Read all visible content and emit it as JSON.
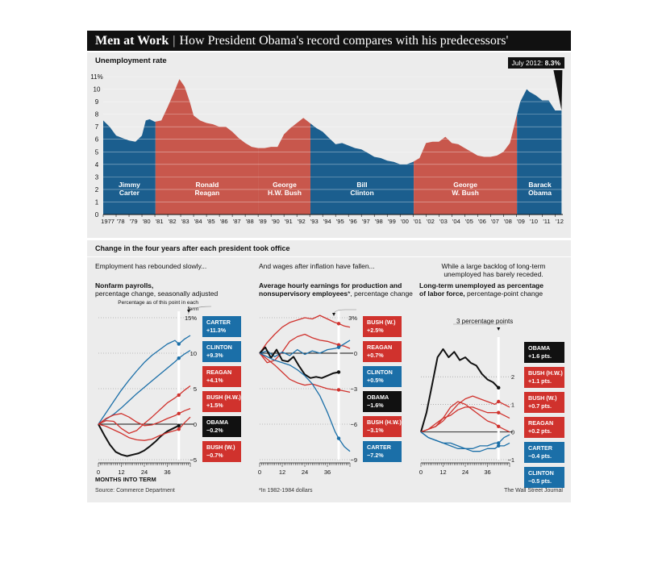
{
  "header": {
    "title_bold": "Men at Work",
    "separator": "|",
    "title_rest": "How President Obama's record compares with his predecessors'"
  },
  "top": {
    "subtitle": "Unemployment rate",
    "callout_prefix": "July 2012:",
    "callout_value": "8.3%",
    "colors": {
      "dem": "#1b5e8e",
      "rep": "#c8574c"
    }
  },
  "section": {
    "title": "Change in the four years after each president took office"
  },
  "panels": {
    "p1": {
      "intro": "Employment has rebounded slowly...",
      "title_bold": "Nonfarm payrolls,",
      "title_rest": "percentage change, seasonally adjusted",
      "note": "Percentage as of this point in each term"
    },
    "p2": {
      "intro": "And wages after inflation have fallen...",
      "title_bold_1": "Average hourly earnings for production and",
      "title_bold_2": "nonsupervisory employees",
      "title_mark": "*",
      "title_rest": ", percentage change"
    },
    "p3": {
      "intro_1": "While a large backlog of long-term",
      "intro_2": "unemployed has barely receded.",
      "title_bold_1": "Long-term unemployed as percentage",
      "title_bold_2": "of labor force,",
      "title_rest": " percentage-point change",
      "annotation": "3 percentage points"
    }
  },
  "footer": {
    "xlabel": "MONTHS INTO TERM",
    "source": "Source: Commerce Department",
    "note": "*In 1982-1984 dollars",
    "credit": "The Wall Street Journal"
  },
  "chart_data": [
    {
      "type": "area",
      "title": "Unemployment rate",
      "ylim": [
        0,
        11
      ],
      "y_ticks": [
        "0",
        "1",
        "2",
        "3",
        "4",
        "5",
        "6",
        "7",
        "8",
        "9",
        "10",
        "11%"
      ],
      "x_ticks": [
        "1977",
        "'78",
        "'79",
        "'80",
        "'81",
        "'82",
        "'83",
        "'84",
        "'85",
        "'86",
        "'87",
        "'88",
        "'89",
        "'90",
        "'91",
        "'92",
        "'93",
        "'94",
        "'95",
        "'96",
        "'97",
        "'98",
        "'99",
        "'00",
        "'01",
        "'02",
        "'03",
        "'04",
        "'05",
        "'06",
        "'07",
        "'08",
        "'09",
        "'10",
        "'11",
        "'12"
      ],
      "x_range": [
        1977,
        2012.6
      ],
      "series": [
        {
          "x": [
            1977.0,
            1977.5,
            1978.0,
            1978.5,
            1979.0,
            1979.5,
            1980.0,
            1980.3,
            1980.6,
            1981.0,
            1981.5,
            1982.0,
            1982.5,
            1982.9,
            1983.3,
            1983.7,
            1984.0,
            1984.5,
            1985.0,
            1985.5,
            1986.0,
            1986.5,
            1987.0,
            1987.5,
            1988.0,
            1988.5,
            1989.0,
            1989.5,
            1990.0,
            1990.5,
            1991.0,
            1991.5,
            1992.0,
            1992.5,
            1993.0,
            1993.5,
            1994.0,
            1994.5,
            1995.0,
            1995.5,
            1996.0,
            1996.5,
            1997.0,
            1997.5,
            1998.0,
            1998.5,
            1999.0,
            1999.5,
            2000.0,
            2000.5,
            2001.0,
            2001.5,
            2002.0,
            2002.5,
            2003.0,
            2003.5,
            2004.0,
            2004.5,
            2005.0,
            2005.5,
            2006.0,
            2006.5,
            2007.0,
            2007.5,
            2008.0,
            2008.5,
            2009.0,
            2009.3,
            2009.8,
            2010.0,
            2010.5,
            2011.0,
            2011.5,
            2012.0,
            2012.5
          ],
          "y": [
            7.5,
            7.0,
            6.3,
            6.1,
            5.9,
            5.8,
            6.3,
            7.5,
            7.6,
            7.4,
            7.5,
            8.6,
            9.8,
            10.8,
            10.2,
            9.0,
            7.9,
            7.5,
            7.3,
            7.2,
            7.0,
            7.0,
            6.6,
            6.1,
            5.7,
            5.4,
            5.3,
            5.3,
            5.4,
            5.4,
            6.4,
            6.9,
            7.3,
            7.7,
            7.3,
            6.9,
            6.6,
            6.1,
            5.6,
            5.7,
            5.5,
            5.3,
            5.2,
            4.9,
            4.6,
            4.5,
            4.3,
            4.2,
            4.0,
            4.0,
            4.2,
            4.5,
            5.7,
            5.8,
            5.8,
            6.2,
            5.7,
            5.6,
            5.3,
            5.0,
            4.7,
            4.6,
            4.6,
            4.7,
            5.0,
            5.7,
            7.8,
            9.0,
            10.0,
            9.8,
            9.5,
            9.1,
            9.1,
            8.3,
            8.3
          ]
        }
      ],
      "presidents": [
        {
          "name_1": "Jimmy",
          "name_2": "Carter",
          "party": "D",
          "start": 1977.0,
          "end": 1981.05
        },
        {
          "name_1": "Ronald",
          "name_2": "Reagan",
          "party": "R",
          "start": 1981.05,
          "end": 1989.05
        },
        {
          "name_1": "George",
          "name_2": "H.W. Bush",
          "party": "R",
          "start": 1989.05,
          "end": 1993.05
        },
        {
          "name_1": "Bill",
          "name_2": "Clinton",
          "party": "D",
          "start": 1993.05,
          "end": 2001.05
        },
        {
          "name_1": "George",
          "name_2": "W. Bush",
          "party": "R",
          "start": 2001.05,
          "end": 2009.05
        },
        {
          "name_1": "Barack",
          "name_2": "Obama",
          "party": "D",
          "start": 2009.05,
          "end": 2012.6
        }
      ]
    },
    {
      "type": "line",
      "title": "Nonfarm payrolls, percentage change, seasonally adjusted",
      "xlabel": "MONTHS INTO TERM",
      "xlim": [
        0,
        48
      ],
      "x_ticks": [
        0,
        12,
        24,
        36
      ],
      "cursor": 42,
      "ylim": [
        -5,
        15
      ],
      "y_ticks": [
        15,
        10,
        5,
        0,
        -5
      ],
      "y_tick_labels": [
        "15%",
        "10",
        "5",
        "0",
        "−5"
      ],
      "series": [
        {
          "name": "CARTER",
          "value": "+11.3%",
          "party": "D",
          "color": "#1b6fa8",
          "x": [
            0,
            4,
            8,
            12,
            16,
            20,
            24,
            28,
            32,
            36,
            40,
            42,
            45,
            48
          ],
          "y": [
            0,
            1.6,
            3.2,
            4.8,
            6.2,
            7.5,
            8.7,
            9.7,
            10.5,
            11.3,
            11.8,
            11.3,
            12,
            12.5
          ]
        },
        {
          "name": "CLINTON",
          "value": "+9.3%",
          "party": "D",
          "color": "#1b6fa8",
          "x": [
            0,
            4,
            8,
            12,
            16,
            20,
            24,
            28,
            32,
            36,
            40,
            42,
            45,
            48
          ],
          "y": [
            0,
            0.7,
            1.4,
            2.3,
            3.3,
            4.3,
            5.2,
            6.1,
            7.0,
            7.9,
            8.8,
            9.3,
            9.9,
            10.4
          ]
        },
        {
          "name": "REAGAN",
          "value": "+4.1%",
          "party": "R",
          "color": "#d0322d",
          "x": [
            0,
            4,
            8,
            12,
            16,
            20,
            24,
            28,
            32,
            36,
            40,
            42,
            45,
            48
          ],
          "y": [
            0,
            0.5,
            0.4,
            -0.6,
            -1.3,
            -0.9,
            0.1,
            1.0,
            2.0,
            3.0,
            3.7,
            4.1,
            4.8,
            5.4
          ]
        },
        {
          "name": "BUSH (H.W.)",
          "value": "+1.5%",
          "party": "R",
          "color": "#d0322d",
          "x": [
            0,
            4,
            8,
            12,
            16,
            20,
            24,
            28,
            32,
            36,
            40,
            42,
            45,
            48
          ],
          "y": [
            0,
            0.8,
            1.3,
            1.5,
            1.0,
            0.3,
            -0.2,
            -0.1,
            0.3,
            0.8,
            1.2,
            1.5,
            1.9,
            2.2
          ]
        },
        {
          "name": "OBAMA",
          "value": "−0.2%",
          "party": "D",
          "color": "#111111",
          "x": [
            0,
            3,
            6,
            9,
            12,
            15,
            18,
            21,
            24,
            27,
            30,
            33,
            36,
            39,
            42
          ],
          "y": [
            0,
            -1.5,
            -2.9,
            -3.9,
            -4.3,
            -4.5,
            -4.3,
            -4.1,
            -3.7,
            -3.1,
            -2.4,
            -1.6,
            -1.0,
            -0.6,
            -0.2
          ]
        },
        {
          "name": "BUSH (W.)",
          "value": "−0.7%",
          "party": "R",
          "color": "#d0322d",
          "x": [
            0,
            4,
            8,
            12,
            16,
            20,
            24,
            28,
            32,
            36,
            40,
            42,
            45,
            48
          ],
          "y": [
            0,
            -0.3,
            -0.8,
            -1.3,
            -1.9,
            -2.2,
            -2.3,
            -2.1,
            -1.6,
            -1.2,
            -0.9,
            -0.7,
            0.2,
            1.0
          ]
        }
      ]
    },
    {
      "type": "line",
      "title": "Average hourly earnings for production and nonsupervisory employees*, percentage change",
      "xlabel": "MONTHS INTO TERM",
      "xlim": [
        0,
        48
      ],
      "x_ticks": [
        0,
        12,
        24,
        36
      ],
      "cursor": 42,
      "ylim": [
        -9,
        3
      ],
      "y_ticks": [
        3,
        0,
        -3,
        -6,
        -9
      ],
      "y_tick_labels": [
        "3%",
        "0",
        "−3",
        "−6",
        "−9"
      ],
      "series": [
        {
          "name": "BUSH (W.)",
          "value": "+2.5%",
          "party": "R",
          "color": "#d0322d",
          "x": [
            0,
            4,
            8,
            12,
            16,
            20,
            24,
            28,
            32,
            36,
            40,
            42,
            45,
            48
          ],
          "y": [
            0,
            0.9,
            1.6,
            2.2,
            2.6,
            2.8,
            3.0,
            2.9,
            3.2,
            2.9,
            2.6,
            2.5,
            2.3,
            2.2
          ]
        },
        {
          "name": "REAGAN",
          "value": "+0.7%",
          "party": "R",
          "color": "#d0322d",
          "x": [
            0,
            4,
            8,
            12,
            16,
            20,
            24,
            28,
            32,
            36,
            40,
            42,
            45,
            48
          ],
          "y": [
            0,
            -0.8,
            -0.6,
            0.1,
            1.0,
            1.4,
            1.6,
            1.3,
            1.1,
            1.0,
            0.8,
            0.7,
            0.6,
            0.4
          ]
        },
        {
          "name": "CLINTON",
          "value": "+0.5%",
          "party": "D",
          "color": "#1b6fa8",
          "x": [
            0,
            4,
            8,
            12,
            16,
            20,
            24,
            28,
            32,
            36,
            40,
            42,
            45,
            48
          ],
          "y": [
            0,
            0.2,
            -0.3,
            0.1,
            -0.2,
            0.3,
            -0.1,
            0.2,
            0.0,
            0.3,
            0.4,
            0.5,
            0.8,
            1.1
          ]
        },
        {
          "name": "OBAMA",
          "value": "−1.6%",
          "party": "D",
          "color": "#111111",
          "x": [
            0,
            3,
            6,
            9,
            12,
            15,
            18,
            21,
            24,
            27,
            30,
            33,
            36,
            39,
            42
          ],
          "y": [
            0,
            0.5,
            -0.4,
            0.3,
            -0.6,
            -0.7,
            -0.3,
            -1.1,
            -1.8,
            -2.1,
            -2.0,
            -2.1,
            -1.9,
            -1.7,
            -1.6
          ]
        },
        {
          "name": "BUSH (H.W.)",
          "value": "−3.1%",
          "party": "R",
          "color": "#d0322d",
          "x": [
            0,
            4,
            8,
            12,
            16,
            20,
            24,
            28,
            32,
            36,
            40,
            42,
            45,
            48
          ],
          "y": [
            0,
            -0.5,
            -1.0,
            -1.6,
            -2.2,
            -2.5,
            -2.7,
            -2.6,
            -2.8,
            -3.0,
            -3.1,
            -3.1,
            -3.2,
            -3.3
          ]
        },
        {
          "name": "CARTER",
          "value": "−7.2%",
          "party": "D",
          "color": "#1b6fa8",
          "x": [
            0,
            4,
            8,
            12,
            16,
            20,
            24,
            28,
            32,
            36,
            40,
            42,
            45,
            48
          ],
          "y": [
            0,
            -0.3,
            -0.6,
            -0.8,
            -1.0,
            -1.4,
            -1.9,
            -2.6,
            -3.6,
            -5.0,
            -6.6,
            -7.2,
            -7.9,
            -8.3
          ]
        }
      ]
    },
    {
      "type": "line",
      "title": "Long-term unemployed as percentage of labor force, percentage-point change",
      "xlabel": "MONTHS INTO TERM",
      "xlim": [
        0,
        48
      ],
      "x_ticks": [
        0,
        12,
        24,
        36
      ],
      "cursor": 42,
      "ylim": [
        -1,
        3.2
      ],
      "y_ticks": [
        2,
        1,
        0,
        -1
      ],
      "y_tick_labels": [
        "2",
        "1",
        "0",
        "−1"
      ],
      "series": [
        {
          "name": "OBAMA",
          "value": "+1.6 pts.",
          "party": "D",
          "color": "#111111",
          "x": [
            0,
            3,
            6,
            9,
            12,
            15,
            18,
            21,
            24,
            27,
            30,
            33,
            36,
            39,
            42
          ],
          "y": [
            0,
            0.7,
            1.7,
            2.7,
            3.0,
            2.7,
            2.9,
            2.6,
            2.7,
            2.5,
            2.4,
            2.1,
            1.9,
            1.8,
            1.6
          ]
        },
        {
          "name": "BUSH (H.W.)",
          "value": "+1.1 pts.",
          "party": "R",
          "color": "#d0322d",
          "x": [
            0,
            4,
            8,
            12,
            16,
            20,
            24,
            28,
            32,
            36,
            40,
            42,
            45,
            48
          ],
          "y": [
            0,
            0.1,
            0.2,
            0.4,
            0.7,
            1.0,
            1.2,
            1.3,
            1.2,
            1.1,
            1.0,
            1.1,
            1.0,
            0.9
          ]
        },
        {
          "name": "BUSH (W.)",
          "value": "+0.7 pts.",
          "party": "R",
          "color": "#d0322d",
          "x": [
            0,
            4,
            8,
            12,
            16,
            20,
            24,
            28,
            32,
            36,
            40,
            42,
            45,
            48
          ],
          "y": [
            0,
            0.1,
            0.3,
            0.5,
            0.6,
            0.8,
            0.9,
            0.9,
            0.8,
            0.7,
            0.7,
            0.7,
            0.6,
            0.5
          ]
        },
        {
          "name": "REAGAN",
          "value": "+0.2 pts.",
          "party": "R",
          "color": "#d0322d",
          "x": [
            0,
            4,
            8,
            12,
            16,
            20,
            24,
            28,
            32,
            36,
            40,
            42,
            45,
            48
          ],
          "y": [
            0,
            0.1,
            0.2,
            0.5,
            0.9,
            1.1,
            1.0,
            0.8,
            0.6,
            0.4,
            0.3,
            0.2,
            0.1,
            0.0
          ]
        },
        {
          "name": "CARTER",
          "value": "−0.4 pts.",
          "party": "D",
          "color": "#1b6fa8",
          "x": [
            0,
            4,
            8,
            12,
            16,
            20,
            24,
            28,
            32,
            36,
            40,
            42,
            45,
            48
          ],
          "y": [
            0,
            -0.2,
            -0.3,
            -0.4,
            -0.4,
            -0.5,
            -0.6,
            -0.6,
            -0.5,
            -0.5,
            -0.4,
            -0.4,
            -0.2,
            -0.1
          ]
        },
        {
          "name": "CLINTON",
          "value": "−0.5 pts.",
          "party": "D",
          "color": "#1b6fa8",
          "x": [
            0,
            4,
            8,
            12,
            16,
            20,
            24,
            28,
            32,
            36,
            40,
            42,
            45,
            48
          ],
          "y": [
            0,
            -0.2,
            -0.3,
            -0.4,
            -0.5,
            -0.6,
            -0.6,
            -0.7,
            -0.7,
            -0.6,
            -0.6,
            -0.5,
            -0.5,
            -0.4
          ]
        }
      ]
    }
  ]
}
